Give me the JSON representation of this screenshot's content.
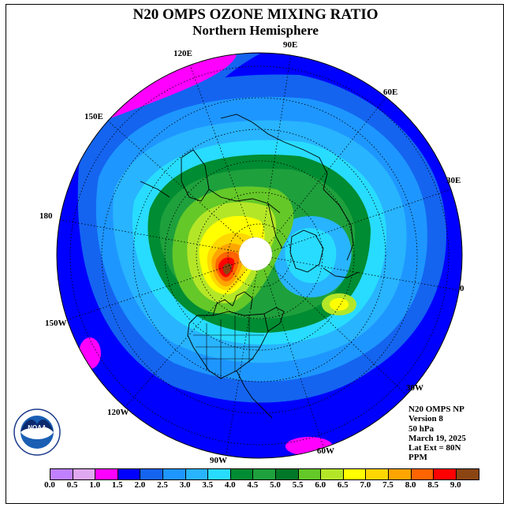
{
  "title": "N20 OMPS OZONE MIXING RATIO",
  "subtitle": "Northern Hemisphere",
  "longitude_labels": [
    "90E",
    "60E",
    "30E",
    "0",
    "30W",
    "60W",
    "90W",
    "120W",
    "150W",
    "180",
    "150E",
    "120E"
  ],
  "info": {
    "line1": "N20 OMPS NP",
    "line2": "Version 8",
    "line3": "50 hPa",
    "line4": "March 19, 2025",
    "line5": "Lat Ext = 80N",
    "line6": "PPM"
  },
  "colorbar": {
    "ticks": [
      "0.0",
      "0.5",
      "1.0",
      "1.5",
      "2.0",
      "2.5",
      "3.0",
      "3.5",
      "4.0",
      "4.5",
      "5.0",
      "5.5",
      "6.0",
      "6.5",
      "7.0",
      "7.5",
      "8.0",
      "8.5",
      "9.0"
    ],
    "colors": [
      "#c080ff",
      "#e0a8f0",
      "#ff00ff",
      "#0000ff",
      "#1464f0",
      "#1e96ff",
      "#28b4ff",
      "#28dcff",
      "#008c32",
      "#1ea03c",
      "#007828",
      "#64c828",
      "#b4e628",
      "#ffff00",
      "#ffd700",
      "#ffa500",
      "#ff6400",
      "#ff0000",
      "#8b4513"
    ]
  },
  "logo_text": "NOAA"
}
